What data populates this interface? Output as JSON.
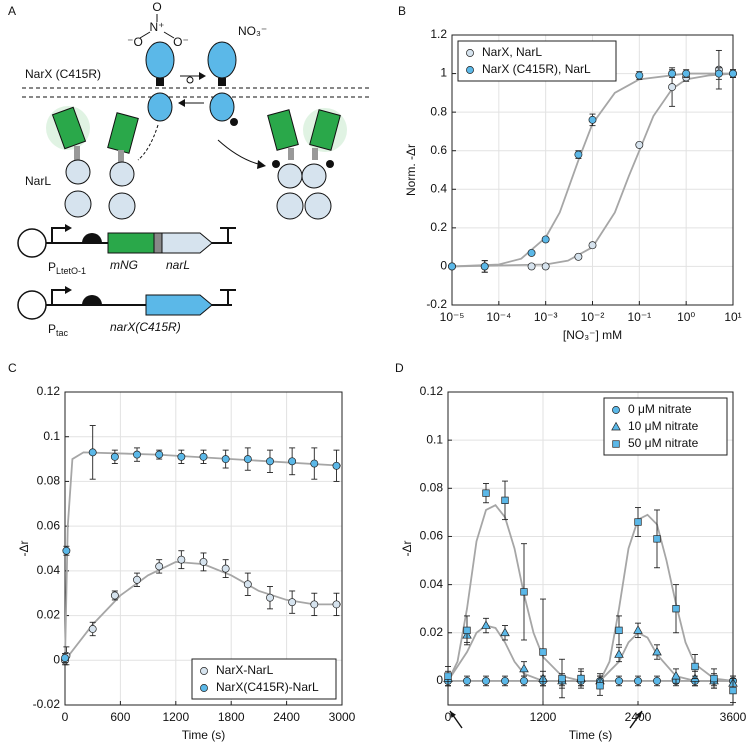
{
  "panel_a": {
    "panel": "A",
    "nitrate_atoms": [
      "O",
      "N⁺",
      "⁻O",
      "O⁻"
    ],
    "nitrate_label": "NO₃⁻",
    "receptor_label": "NarX (C415R)",
    "regulator_label": "NarL",
    "construct_1": {
      "promoter": "P",
      "promoter_sub": "LtetO-1",
      "gene_1": "mNG",
      "gene_2": "narL"
    },
    "construct_2": {
      "promoter": "P",
      "promoter_sub": "tac",
      "gene_1": "narX(C415R)"
    }
  },
  "chart_data": [
    {
      "type": "scatter",
      "panel": "B",
      "xlabel": "[NO₃⁻] mM",
      "ylabel": "Norm. -Δr",
      "xscale": "log",
      "xlim": [
        1e-05,
        10
      ],
      "xticks": [
        {
          "value": 1e-05,
          "label": "10⁻⁵"
        },
        {
          "value": 0.0001,
          "label": "10⁻⁴"
        },
        {
          "value": 0.001,
          "label": "10⁻³"
        },
        {
          "value": 0.01,
          "label": "10⁻²"
        },
        {
          "value": 0.1,
          "label": "10⁻¹"
        },
        {
          "value": 1,
          "label": "10⁰"
        },
        {
          "value": 10,
          "label": "10¹"
        }
      ],
      "ylim": [
        -0.2,
        1.2
      ],
      "yticks": [
        -0.2,
        0,
        0.2,
        0.4,
        0.6,
        0.8,
        1,
        1.2
      ],
      "grid": true,
      "legend": "upper left",
      "series": [
        {
          "name": "NarX, NarL",
          "color": "#d6e3ee",
          "marker": "circle",
          "x": [
            1e-05,
            5e-05,
            0.0005,
            0.001,
            0.005,
            0.01,
            0.1,
            0.5,
            1,
            5,
            10
          ],
          "values": [
            0,
            0,
            0,
            0,
            0.05,
            0.11,
            0.63,
            0.93,
            0.98,
            1.02,
            1
          ],
          "errors": [
            0.01,
            0.03,
            0.01,
            0.01,
            0.01,
            0.01,
            0.01,
            0.1,
            0.02,
            0.1,
            0.02
          ]
        },
        {
          "name": "NarX (C415R), NarL",
          "color": "#5bb8e8",
          "marker": "circle",
          "x": [
            1e-05,
            5e-05,
            0.0005,
            0.001,
            0.005,
            0.01,
            0.1,
            0.5,
            1,
            5,
            10
          ],
          "values": [
            0,
            0,
            0.07,
            0.14,
            0.58,
            0.76,
            0.99,
            1,
            1,
            1,
            1
          ],
          "errors": [
            0.01,
            0.03,
            0.01,
            0.01,
            0.02,
            0.03,
            0.02,
            0.02,
            0.02,
            0.03,
            0.02
          ]
        }
      ],
      "fits": [
        {
          "color": "#a6a6a6",
          "x": [
            1e-05,
            0.001,
            0.003,
            0.01,
            0.03,
            0.06,
            0.1,
            0.2,
            0.5,
            1,
            3,
            10
          ],
          "values": [
            0,
            0.01,
            0.03,
            0.1,
            0.28,
            0.47,
            0.6,
            0.78,
            0.92,
            0.97,
            0.99,
            1
          ]
        },
        {
          "color": "#a6a6a6",
          "x": [
            1e-05,
            0.0001,
            0.0003,
            0.001,
            0.002,
            0.005,
            0.01,
            0.03,
            0.1,
            1,
            10
          ],
          "values": [
            0,
            0.01,
            0.04,
            0.15,
            0.28,
            0.55,
            0.74,
            0.9,
            0.97,
            1,
            1
          ]
        }
      ]
    },
    {
      "type": "scatter",
      "panel": "C",
      "xlabel": "Time (s)",
      "ylabel": "-Δr",
      "xlim": [
        0,
        3000
      ],
      "xticks": [
        0,
        600,
        1200,
        1800,
        2400,
        3000
      ],
      "ylim": [
        -0.02,
        0.12
      ],
      "yticks": [
        -0.02,
        0,
        0.02,
        0.04,
        0.06,
        0.08,
        0.1,
        0.12
      ],
      "grid": true,
      "legend": "lower right",
      "series": [
        {
          "name": "NarX-NarL",
          "color": "#d6e3ee",
          "marker": "circle",
          "x": [
            0,
            15,
            300,
            540,
            780,
            1020,
            1260,
            1500,
            1740,
            1980,
            2220,
            2460,
            2700,
            2940
          ],
          "values": [
            0,
            0.002,
            0.014,
            0.029,
            0.036,
            0.042,
            0.045,
            0.044,
            0.041,
            0.034,
            0.028,
            0.026,
            0.025,
            0.025
          ],
          "errors": [
            0.002,
            0.004,
            0.003,
            0.002,
            0.003,
            0.003,
            0.004,
            0.004,
            0.004,
            0.005,
            0.005,
            0.005,
            0.005,
            0.005
          ]
        },
        {
          "name": "NarX(C415R)-NarL",
          "color": "#5bb8e8",
          "marker": "circle",
          "x": [
            0,
            15,
            300,
            540,
            780,
            1020,
            1260,
            1500,
            1740,
            1980,
            2220,
            2460,
            2700,
            2940
          ],
          "values": [
            0.001,
            0.049,
            0.093,
            0.091,
            0.092,
            0.092,
            0.091,
            0.091,
            0.09,
            0.09,
            0.089,
            0.089,
            0.088,
            0.087
          ],
          "errors": [
            0.002,
            0.002,
            0.012,
            0.003,
            0.003,
            0.002,
            0.003,
            0.003,
            0.004,
            0.005,
            0.005,
            0.006,
            0.007,
            0.007
          ]
        }
      ],
      "fits": [
        {
          "color": "#a6a6a6",
          "x": [
            0,
            300,
            600,
            900,
            1200,
            1500,
            1800,
            2100,
            2400,
            2700,
            3000
          ],
          "values": [
            0,
            0.016,
            0.029,
            0.038,
            0.044,
            0.043,
            0.038,
            0.031,
            0.027,
            0.025,
            0.025
          ]
        },
        {
          "color": "#a6a6a6",
          "x": [
            0,
            30,
            80,
            200,
            1000,
            3000
          ],
          "values": [
            0,
            0.06,
            0.09,
            0.093,
            0.092,
            0.087
          ]
        }
      ]
    },
    {
      "type": "scatter",
      "panel": "D",
      "xlabel": "Time (s)",
      "ylabel": "-Δr",
      "xlim": [
        0,
        3600
      ],
      "xticks": [
        0,
        1200,
        2400,
        3600
      ],
      "ylim": [
        -0.01,
        0.12
      ],
      "yticks": [
        0,
        0.02,
        0.04,
        0.06,
        0.08,
        0.1,
        0.12
      ],
      "grid": true,
      "legend": "upper right",
      "series": [
        {
          "name": "0 μM nitrate",
          "color": "#5bb8e8",
          "marker": "circle",
          "x": [
            0,
            240,
            480,
            720,
            960,
            1200,
            1440,
            1680,
            1920,
            2160,
            2400,
            2640,
            2880,
            3120,
            3360,
            3600
          ],
          "values": [
            0,
            0,
            0,
            0,
            0,
            0,
            0,
            0,
            0,
            0,
            0,
            0,
            0,
            0,
            0,
            0
          ],
          "errors": [
            0.002,
            0.002,
            0.002,
            0.002,
            0.002,
            0.002,
            0.002,
            0.002,
            0.002,
            0.002,
            0.002,
            0.002,
            0.002,
            0.002,
            0.002,
            0.002
          ]
        },
        {
          "name": "10 μM nitrate",
          "color": "#5bb8e8",
          "marker": "triangle",
          "x": [
            0,
            240,
            480,
            720,
            960,
            1200,
            1440,
            1680,
            1920,
            2160,
            2400,
            2640,
            2880,
            3120,
            3360,
            3600
          ],
          "values": [
            0.001,
            0.019,
            0.023,
            0.02,
            0.005,
            0.001,
            0,
            0.001,
            0,
            0.011,
            0.021,
            0.012,
            0.002,
            0.001,
            0,
            -0.001
          ],
          "errors": [
            0.003,
            0.003,
            0.003,
            0.003,
            0.003,
            0.003,
            0.003,
            0.003,
            0.003,
            0.003,
            0.003,
            0.003,
            0.003,
            0.003,
            0.003,
            0.003
          ]
        },
        {
          "name": "50 μM nitrate",
          "color": "#5bb8e8",
          "marker": "square",
          "x": [
            0,
            240,
            480,
            720,
            960,
            1200,
            1440,
            1680,
            1920,
            2160,
            2400,
            2640,
            2880,
            3120,
            3360,
            3600
          ],
          "values": [
            0.002,
            0.021,
            0.078,
            0.075,
            0.037,
            0.012,
            0.001,
            0.001,
            -0.002,
            0.021,
            0.066,
            0.059,
            0.03,
            0.006,
            0.001,
            -0.004
          ],
          "errors": [
            0.004,
            0.006,
            0.004,
            0.008,
            0.02,
            0.022,
            0.008,
            0.004,
            0.004,
            0.006,
            0.006,
            0.012,
            0.01,
            0.005,
            0.004,
            0.005
          ]
        }
      ],
      "fits": [
        {
          "color": "#a6a6a6",
          "x": [
            0,
            3600
          ],
          "values": [
            0,
            0
          ]
        },
        {
          "color": "#a6a6a6",
          "x": [
            0,
            240,
            360,
            480,
            600,
            720,
            840,
            960,
            1200,
            1920,
            2160,
            2280,
            2400,
            2520,
            2640,
            2880,
            3120,
            3600
          ],
          "values": [
            0,
            0.012,
            0.02,
            0.023,
            0.022,
            0.016,
            0.008,
            0.003,
            0,
            0,
            0.008,
            0.016,
            0.02,
            0.018,
            0.011,
            0.002,
            0,
            0
          ]
        },
        {
          "color": "#a6a6a6",
          "x": [
            0,
            120,
            240,
            360,
            480,
            600,
            720,
            840,
            960,
            1080,
            1200,
            1440,
            1680,
            1920,
            2040,
            2160,
            2280,
            2400,
            2520,
            2640,
            2760,
            2880,
            3000,
            3120,
            3360,
            3600
          ],
          "values": [
            0,
            0.008,
            0.03,
            0.058,
            0.071,
            0.073,
            0.068,
            0.055,
            0.036,
            0.02,
            0.01,
            0.002,
            0,
            0,
            0.008,
            0.03,
            0.055,
            0.067,
            0.069,
            0.065,
            0.05,
            0.032,
            0.016,
            0.007,
            0.001,
            0
          ]
        }
      ]
    }
  ]
}
